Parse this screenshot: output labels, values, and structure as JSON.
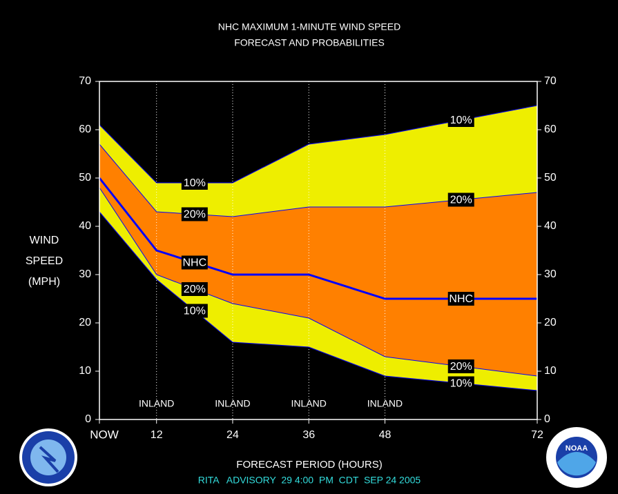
{
  "chart_data": {
    "type": "area",
    "title": [
      "NHC MAXIMUM 1-MINUTE WIND SPEED",
      "FORECAST AND PROBABILITIES"
    ],
    "y_label": [
      "WIND",
      "SPEED",
      "(MPH)"
    ],
    "x_label": "FORECAST PERIOD (HOURS)",
    "footer": "RITA   ADVISORY  29 4:00  PM  CDT  SEP 24 2005",
    "inland_labels": [
      "INLAND",
      "INLAND",
      "INLAND",
      "INLAND"
    ],
    "x": [
      3,
      12,
      24,
      36,
      48,
      60,
      72
    ],
    "xlim": [
      3,
      72
    ],
    "xticks": [
      {
        "value": 3,
        "label": "NOW"
      },
      12,
      24,
      36,
      48,
      72
    ],
    "ylim": [
      0,
      70
    ],
    "yticks": [
      0,
      10,
      20,
      30,
      40,
      50,
      60,
      70
    ],
    "series": [
      {
        "name": "10%",
        "color": "#eeee00",
        "values": [
          61,
          49,
          49,
          57,
          59,
          62,
          65
        ]
      },
      {
        "name": "20%",
        "color": "#ff8000",
        "values": [
          57,
          43,
          42,
          44,
          44,
          45.5,
          47
        ]
      },
      {
        "name": "NHC",
        "color": "#0000ff",
        "values": [
          50,
          35,
          30,
          30,
          25,
          25,
          25
        ]
      },
      {
        "name": "20%",
        "color": "#ff8000",
        "values": [
          48,
          30,
          24,
          21,
          13,
          11,
          9
        ]
      },
      {
        "name": "10%",
        "color": "#eeee00",
        "values": [
          43,
          29,
          16,
          15,
          9,
          7.5,
          6
        ]
      }
    ]
  }
}
